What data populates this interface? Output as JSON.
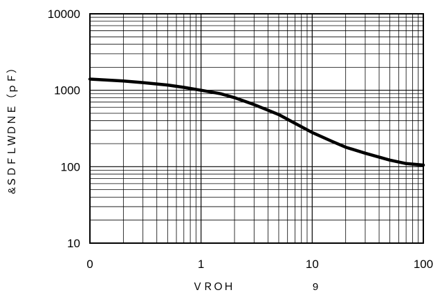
{
  "chart_data": {
    "type": "line",
    "xscale": "log",
    "yscale": "log",
    "xlim": [
      0.1,
      100
    ],
    "ylim": [
      10,
      10000
    ],
    "x_tick_values": [
      0.1,
      1,
      10,
      100
    ],
    "x_tick_labels": [
      "0",
      "1",
      "10",
      "100"
    ],
    "y_tick_values": [
      10,
      100,
      1000,
      10000
    ],
    "y_tick_labels": [
      "10",
      "100",
      "1000",
      "10000"
    ],
    "grid": true,
    "xlabel": "ＶＲＯＨ",
    "xlabel_unit": "9",
    "ylabel": "&ＳＤＦＬＷＤＮＥ（ｐＦ）",
    "legend": "none",
    "series": [
      {
        "color": "#000000",
        "points": [
          [
            0.1,
            1400
          ],
          [
            0.2,
            1320
          ],
          [
            0.3,
            1260
          ],
          [
            0.5,
            1170
          ],
          [
            0.7,
            1090
          ],
          [
            1,
            1000
          ],
          [
            1.5,
            900
          ],
          [
            2,
            800
          ],
          [
            3,
            650
          ],
          [
            5,
            480
          ],
          [
            7,
            370
          ],
          [
            10,
            280
          ],
          [
            15,
            215
          ],
          [
            20,
            180
          ],
          [
            30,
            150
          ],
          [
            50,
            122
          ],
          [
            70,
            110
          ],
          [
            100,
            105
          ]
        ]
      }
    ]
  }
}
